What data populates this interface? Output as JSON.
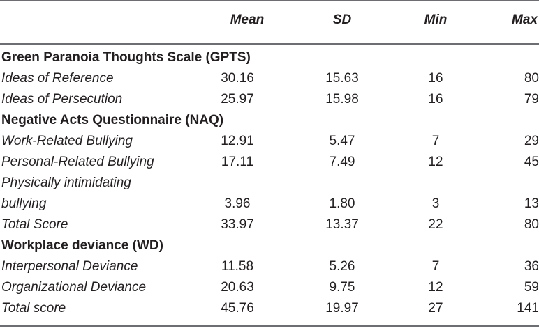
{
  "header": {
    "mean": "Mean",
    "sd": "SD",
    "min": "Min",
    "max": "Max"
  },
  "sections": [
    {
      "title": "Green Paranoia Thoughts Scale (GPTS)",
      "rows": [
        {
          "label": "Ideas of Reference",
          "mean": "30.16",
          "sd": "15.63",
          "min": "16",
          "max": "80"
        },
        {
          "label": "Ideas of Persecution",
          "mean": "25.97",
          "sd": "15.98",
          "min": "16",
          "max": "79"
        }
      ]
    },
    {
      "title": "Negative Acts Questionnaire (NAQ)",
      "rows": [
        {
          "label": "Work-Related Bullying",
          "mean": "12.91",
          "sd": "5.47",
          "min": "7",
          "max": "29"
        },
        {
          "label": "Personal-Related Bullying",
          "mean": "17.11",
          "sd": "7.49",
          "min": "12",
          "max": "45"
        },
        {
          "label": "Physically intimidating",
          "label2": "bullying",
          "mean": "3.96",
          "sd": "1.80",
          "min": "3",
          "max": "13"
        },
        {
          "label": "Total Score",
          "mean": "33.97",
          "sd": "13.37",
          "min": "22",
          "max": "80"
        }
      ]
    },
    {
      "title": "Workplace deviance (WD)",
      "rows": [
        {
          "label": "Interpersonal Deviance",
          "mean": "11.58",
          "sd": "5.26",
          "min": "7",
          "max": "36"
        },
        {
          "label": "Organizational Deviance",
          "mean": "20.63",
          "sd": "9.75",
          "min": "12",
          "max": "59"
        },
        {
          "label": "Total score",
          "mean": "45.76",
          "sd": "19.97",
          "min": "27",
          "max": "141"
        }
      ]
    }
  ]
}
